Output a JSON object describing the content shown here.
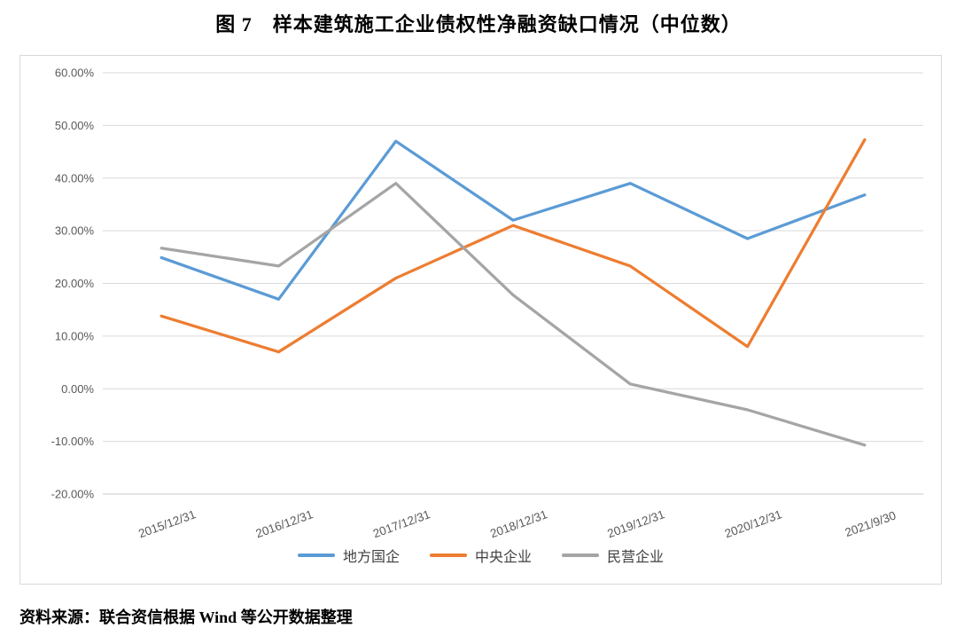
{
  "figure_title": "图 7　样本建筑施工企业债权性净融资缺口情况（中位数）",
  "source_note": "资料来源：联合资信根据 Wind 等公开数据整理",
  "colors": {
    "grid": "#d9d9d9",
    "axis": "#c9c9c9",
    "tick_text": "#595959",
    "legend_text": "#404040",
    "chart_border": "#d9d9d9"
  },
  "chart_data": {
    "type": "line",
    "title": "图 7　样本建筑施工企业债权性净融资缺口情况（中位数）",
    "categories": [
      "2015/12/31",
      "2016/12/31",
      "2017/12/31",
      "2018/12/31",
      "2019/12/31",
      "2020/12/31",
      "2021/9/30"
    ],
    "series": [
      {
        "key": "local-soe",
        "name": "地方国企",
        "color": "#5B9BD5",
        "values": [
          24.9,
          17.0,
          47.0,
          32.0,
          39.0,
          28.5,
          36.8
        ]
      },
      {
        "key": "central-enterprise",
        "name": "中央企业",
        "color": "#ED7D31",
        "values": [
          13.8,
          7.0,
          21.0,
          31.0,
          23.3,
          8.0,
          47.3
        ]
      },
      {
        "key": "private-enterprise",
        "name": "民营企业",
        "color": "#A5A5A5",
        "values": [
          26.7,
          23.3,
          39.0,
          17.8,
          0.9,
          -4.0,
          -10.7
        ]
      }
    ],
    "ylim": [
      -20,
      60
    ],
    "ytick_values": [
      60,
      50,
      40,
      30,
      20,
      10,
      0,
      -10,
      -20
    ],
    "ytick_labels": [
      "60.00%",
      "50.00%",
      "40.00%",
      "30.00%",
      "20.00%",
      "10.00%",
      "0.00%",
      "-10.00%",
      "-20.00%"
    ],
    "xlabel": "",
    "ylabel": "",
    "grid": true,
    "legend_position": "bottom",
    "x_label_rotation": -20
  }
}
